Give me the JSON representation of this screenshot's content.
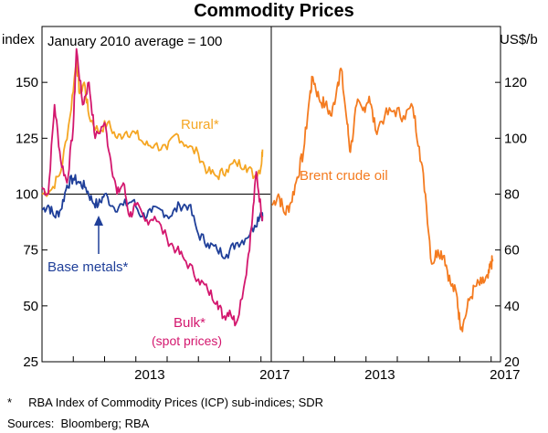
{
  "chart_data": [
    {
      "type": "line",
      "panel": "left",
      "title": "Commodity Prices",
      "ylabel": "index",
      "ylim": [
        25,
        175
      ],
      "yticks": [
        25,
        50,
        75,
        100,
        125,
        150
      ],
      "x_range": [
        2010.0,
        2017.3
      ],
      "xticks": [
        2013,
        2017
      ],
      "reference_line": 100,
      "panel_note": "January 2010 average = 100",
      "series": [
        {
          "name": "Rural*",
          "color": "#f5a623",
          "x": [
            2010.0,
            2010.3,
            2010.6,
            2010.9,
            2011.1,
            2011.2,
            2011.35,
            2011.5,
            2011.8,
            2012.1,
            2012.4,
            2012.7,
            2013.0,
            2013.3,
            2013.6,
            2014.0,
            2014.3,
            2014.6,
            2015.0,
            2015.3,
            2015.6,
            2015.9,
            2016.2,
            2016.5,
            2016.8,
            2017.0,
            2017.05
          ],
          "values": [
            100,
            102,
            110,
            135,
            160,
            145,
            150,
            135,
            128,
            132,
            125,
            128,
            127,
            122,
            122,
            120,
            127,
            122,
            118,
            110,
            108,
            111,
            114,
            113,
            108,
            112,
            120
          ]
        },
        {
          "name": "Bulk*",
          "sublabel": "(spot prices)",
          "color": "#d3176e",
          "x": [
            2010.0,
            2010.2,
            2010.4,
            2010.6,
            2010.8,
            2011.0,
            2011.1,
            2011.3,
            2011.5,
            2011.7,
            2012.0,
            2012.2,
            2012.4,
            2012.6,
            2012.8,
            2013.0,
            2013.3,
            2013.6,
            2014.0,
            2014.3,
            2014.6,
            2015.0,
            2015.3,
            2015.6,
            2015.8,
            2016.0,
            2016.2,
            2016.5,
            2016.7,
            2016.85,
            2017.0,
            2017.05
          ],
          "values": [
            103,
            100,
            140,
            115,
            105,
            130,
            165,
            140,
            150,
            125,
            132,
            115,
            100,
            105,
            90,
            95,
            88,
            90,
            80,
            75,
            70,
            62,
            57,
            52,
            45,
            48,
            42,
            62,
            85,
            110,
            93,
            90
          ]
        },
        {
          "name": "Base metals*",
          "color": "#1f3f99",
          "x": [
            2010.0,
            2010.2,
            2010.4,
            2010.6,
            2010.8,
            2011.0,
            2011.2,
            2011.4,
            2011.6,
            2011.8,
            2012.0,
            2012.3,
            2012.6,
            2012.9,
            2013.2,
            2013.5,
            2013.8,
            2014.1,
            2014.4,
            2014.7,
            2015.0,
            2015.3,
            2015.6,
            2015.9,
            2016.2,
            2016.5,
            2016.8,
            2017.0,
            2017.05
          ],
          "values": [
            93,
            95,
            90,
            93,
            104,
            107,
            105,
            103,
            97,
            95,
            100,
            94,
            95,
            97,
            90,
            92,
            93,
            90,
            95,
            95,
            82,
            78,
            75,
            73,
            78,
            80,
            86,
            92,
            90
          ]
        }
      ],
      "annotations": [
        {
          "text": "Rural*",
          "series": "Rural*"
        },
        {
          "text": "Base metals*",
          "series": "Base metals*",
          "arrow": true
        },
        {
          "text": "Bulk*",
          "series": "Bulk*"
        },
        {
          "text": "(spot prices)",
          "series": "Bulk*"
        }
      ]
    },
    {
      "type": "line",
      "panel": "right",
      "ylabel": "US$/b",
      "ylim": [
        20,
        140
      ],
      "yticks": [
        20,
        40,
        60,
        80,
        100,
        120
      ],
      "x_range": [
        2010.0,
        2017.3
      ],
      "xticks": [
        2013,
        2017
      ],
      "series": [
        {
          "name": "Brent crude oil",
          "color": "#f47b20",
          "x": [
            2010.0,
            2010.2,
            2010.4,
            2010.6,
            2010.8,
            2011.0,
            2011.2,
            2011.3,
            2011.5,
            2011.7,
            2011.9,
            2012.1,
            2012.2,
            2012.4,
            2012.5,
            2012.7,
            2012.9,
            2013.1,
            2013.3,
            2013.6,
            2013.9,
            2014.2,
            2014.5,
            2014.7,
            2014.9,
            2015.1,
            2015.3,
            2015.5,
            2015.7,
            2015.9,
            2016.0,
            2016.1,
            2016.3,
            2016.5,
            2016.7,
            2016.9,
            2017.0,
            2017.05
          ],
          "values": [
            76,
            80,
            73,
            77,
            86,
            95,
            115,
            122,
            114,
            112,
            108,
            120,
            125,
            105,
            95,
            112,
            110,
            115,
            103,
            108,
            110,
            108,
            111,
            97,
            80,
            55,
            60,
            58,
            48,
            44,
            34,
            33,
            42,
            47,
            48,
            50,
            55,
            56
          ]
        }
      ],
      "annotations": [
        {
          "text": "Brent crude oil",
          "series": "Brent crude oil"
        }
      ]
    }
  ],
  "footnotes": [
    "*     RBA Index of Commodity Prices (ICP) sub-indices; SDR",
    "Sources:  Bloomberg; RBA"
  ]
}
